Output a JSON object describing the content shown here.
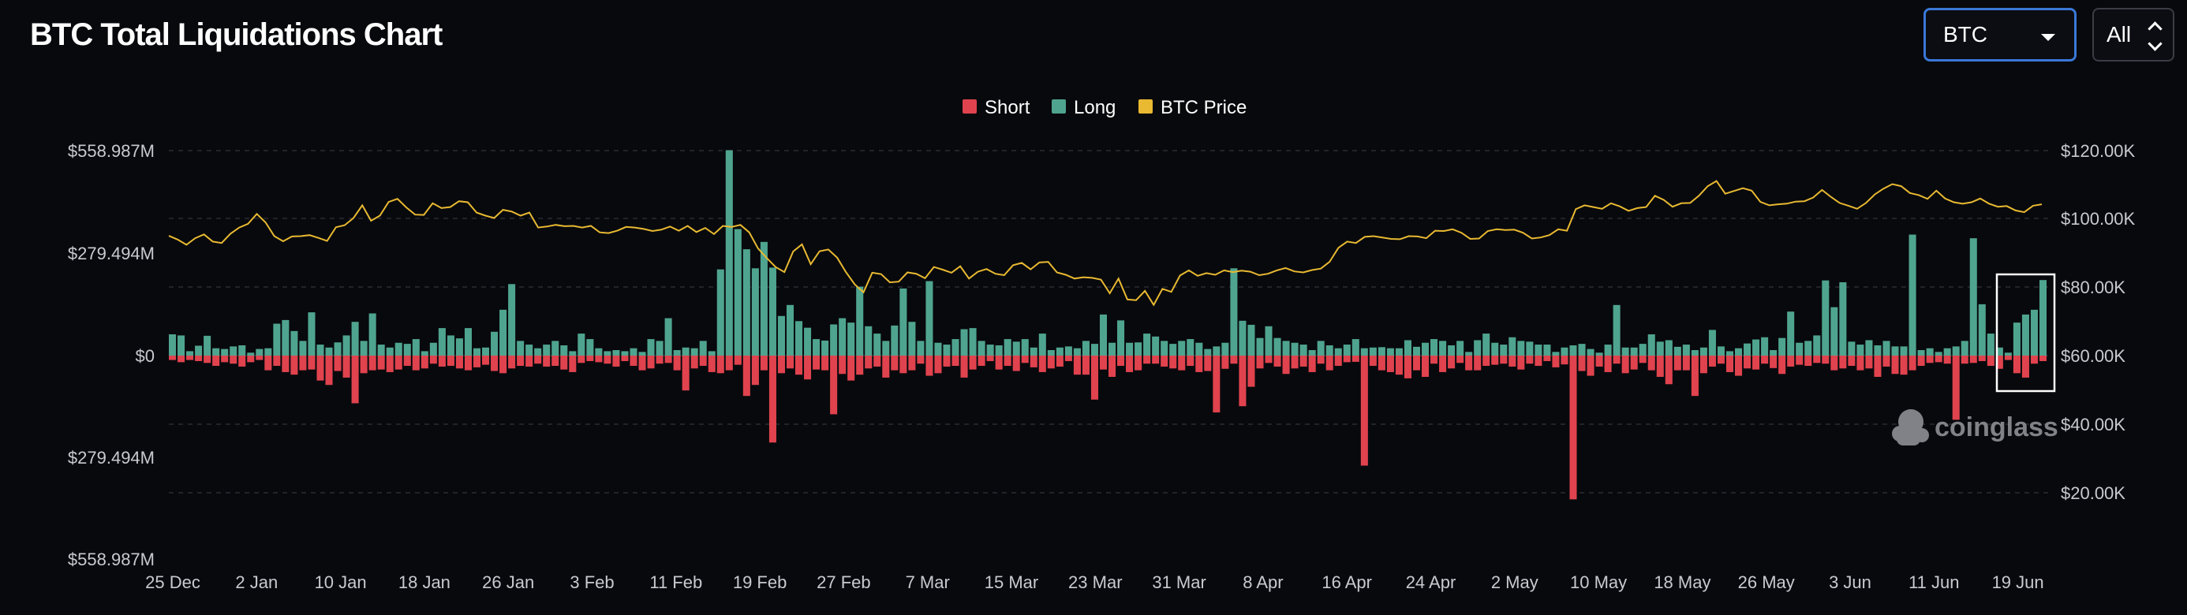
{
  "header": {
    "title": "BTC Total Liquidations Chart",
    "coin_select": {
      "value": "BTC"
    },
    "range_select": {
      "value": "All"
    }
  },
  "watermark": "coinglass",
  "colors": {
    "background": "#08090d",
    "short": "#e0434e",
    "long": "#4fa48f",
    "price": "#e8b931",
    "grid": "#2a2c33",
    "highlight_box": "#ffffff"
  },
  "chart_data": {
    "type": "bar",
    "legend": [
      "Short",
      "Long",
      "BTC Price"
    ],
    "legend_position": "top-center",
    "x_ticks": [
      "25 Dec",
      "2 Jan",
      "10 Jan",
      "18 Jan",
      "26 Jan",
      "3 Feb",
      "11 Feb",
      "19 Feb",
      "27 Feb",
      "7 Mar",
      "15 Mar",
      "23 Mar",
      "31 Mar",
      "8 Apr",
      "16 Apr",
      "24 Apr",
      "2 May",
      "10 May",
      "18 May",
      "26 May",
      "3 Jun",
      "11 Jun",
      "19 Jun"
    ],
    "left_axis": {
      "ticks": [
        "$558.987M",
        "$279.494M",
        "$0",
        "$279.494M",
        "$558.987M"
      ],
      "range": [
        -558.987,
        558.987
      ],
      "unit": "M USD"
    },
    "right_axis": {
      "ticks": [
        "$120.00K",
        "$100.00K",
        "$80.00K",
        "$60.00K",
        "$40.00K",
        "$20.00K"
      ],
      "range": [
        20000,
        120000
      ]
    },
    "grid": true,
    "long_values": [
      58,
      55,
      12,
      27,
      54,
      20,
      18,
      25,
      28,
      8,
      18,
      20,
      87,
      97,
      67,
      40,
      118,
      30,
      22,
      36,
      55,
      92,
      40,
      115,
      30,
      22,
      35,
      32,
      45,
      12,
      35,
      75,
      55,
      47,
      75,
      20,
      22,
      65,
      125,
      195,
      40,
      30,
      20,
      30,
      40,
      28,
      12,
      60,
      45,
      20,
      12,
      15,
      12,
      20,
      10,
      45,
      40,
      102,
      15,
      22,
      20,
      40,
      12,
      235,
      560,
      345,
      290,
      238,
      310,
      240,
      108,
      138,
      94,
      76,
      45,
      41,
      85,
      102,
      90,
      188,
      80,
      60,
      40,
      82,
      183,
      92,
      40,
      203,
      35,
      30,
      45,
      72,
      75,
      40,
      30,
      28,
      45,
      38,
      45,
      22,
      60,
      15,
      22,
      25,
      20,
      40,
      32,
      112,
      35,
      96,
      35,
      36,
      60,
      52,
      40,
      32,
      40,
      45,
      35,
      18,
      25,
      35,
      238,
      95,
      84,
      48,
      80,
      48,
      40,
      35,
      30,
      15,
      40,
      28,
      20,
      30,
      45,
      20,
      22,
      23,
      20,
      20,
      42,
      24,
      35,
      45,
      40,
      28,
      40,
      10,
      42,
      60,
      35,
      30,
      50,
      40,
      38,
      30,
      30,
      10,
      22,
      28,
      32,
      18,
      8,
      30,
      138,
      22,
      22,
      32,
      58,
      38,
      42,
      24,
      30,
      15,
      22,
      70,
      25,
      12,
      20,
      33,
      44,
      50,
      15,
      48,
      120,
      35,
      40,
      55,
      205,
      132,
      200,
      38,
      30,
      42,
      28,
      40,
      25,
      25,
      330,
      15,
      20,
      10,
      20,
      25,
      40,
      320,
      140,
      60,
      22,
      8,
      90,
      112,
      125,
      206
    ],
    "short_values": [
      12,
      18,
      12,
      15,
      20,
      28,
      18,
      22,
      30,
      18,
      12,
      40,
      28,
      45,
      52,
      40,
      38,
      68,
      80,
      42,
      60,
      130,
      48,
      40,
      38,
      45,
      38,
      28,
      40,
      35,
      22,
      30,
      28,
      35,
      40,
      32,
      25,
      42,
      48,
      35,
      28,
      30,
      22,
      30,
      28,
      38,
      45,
      20,
      15,
      18,
      22,
      30,
      15,
      28,
      40,
      35,
      22,
      20,
      40,
      95,
      35,
      28,
      45,
      48,
      40,
      25,
      110,
      80,
      40,
      237,
      48,
      35,
      52,
      65,
      38,
      40,
      160,
      50,
      68,
      52,
      35,
      30,
      60,
      40,
      48,
      40,
      22,
      55,
      48,
      30,
      28,
      60,
      38,
      28,
      15,
      38,
      28,
      42,
      20,
      32,
      45,
      35,
      30,
      15,
      52,
      52,
      120,
      38,
      58,
      28,
      45,
      40,
      22,
      22,
      30,
      35,
      40,
      28,
      45,
      42,
      155,
      36,
      22,
      138,
      85,
      35,
      20,
      30,
      50,
      35,
      30,
      45,
      22,
      40,
      28,
      18,
      17,
      300,
      28,
      40,
      45,
      52,
      62,
      40,
      58,
      22,
      45,
      35,
      20,
      40,
      40,
      28,
      25,
      22,
      30,
      38,
      22,
      28,
      15,
      32,
      24,
      392,
      42,
      55,
      30,
      45,
      22,
      48,
      38,
      20,
      40,
      58,
      78,
      40,
      40,
      110,
      48,
      30,
      22,
      45,
      55,
      35,
      38,
      22,
      34,
      50,
      30,
      25,
      28,
      20,
      22,
      40,
      35,
      28,
      40,
      35,
      58,
      30,
      50,
      52,
      40,
      28,
      20,
      18,
      22,
      175,
      22,
      20,
      15,
      28,
      36,
      12,
      48,
      60,
      22,
      15,
      38,
      38,
      22,
      48
    ],
    "price_values": [
      95100,
      94000,
      92500,
      94400,
      95500,
      93400,
      93000,
      95700,
      97500,
      98600,
      101500,
      99000,
      95000,
      93500,
      94900,
      95000,
      95300,
      94500,
      93600,
      97600,
      98200,
      100300,
      104000,
      99500,
      101000,
      105000,
      105900,
      103400,
      101300,
      101200,
      104600,
      103200,
      103500,
      105200,
      104900,
      101900,
      101000,
      100300,
      102700,
      102200,
      101000,
      101900,
      97500,
      97800,
      98300,
      97900,
      98000,
      97500,
      98000,
      96100,
      95900,
      96600,
      97700,
      97500,
      97100,
      96500,
      96900,
      97800,
      96600,
      98000,
      96200,
      97400,
      95600,
      98000,
      97700,
      98300,
      96100,
      91400,
      88600,
      86000,
      84500,
      90500,
      92600,
      86800,
      90600,
      91100,
      88700,
      84500,
      80900,
      78600,
      84300,
      83900,
      81500,
      81700,
      84400,
      84000,
      82700,
      86000,
      85200,
      84300,
      86200,
      82600,
      84600,
      85400,
      84000,
      83600,
      86500,
      87200,
      85300,
      87300,
      87500,
      84400,
      83700,
      82600,
      83000,
      82800,
      82300,
      78300,
      82600,
      76500,
      76300,
      79000,
      74900,
      79600,
      78700,
      83500,
      85000,
      83400,
      84200,
      83700,
      85000,
      84500,
      84900,
      84600,
      83600,
      84000,
      85000,
      85700,
      84700,
      84400,
      85100,
      85500,
      87500,
      91600,
      93400,
      93000,
      94800,
      95000,
      94600,
      94200,
      94100,
      95000,
      94900,
      94400,
      96600,
      96500,
      97000,
      96000,
      94200,
      94300,
      96500,
      97000,
      96800,
      96900,
      96000,
      94300,
      94600,
      95300,
      97000,
      96600,
      102900,
      104000,
      103500,
      103000,
      104600,
      103700,
      102400,
      103200,
      103500,
      106800,
      105600,
      103600,
      104600,
      104700,
      106800,
      109600,
      111100,
      107400,
      108200,
      109000,
      108300,
      105000,
      104000,
      104300,
      104500,
      105100,
      105200,
      106300,
      108500,
      106500,
      104700,
      103900,
      103000,
      104700,
      107200,
      108900,
      110200,
      109600,
      107600,
      107000,
      105900,
      108300,
      106000,
      104900,
      104500,
      104900,
      106000,
      104500,
      103600,
      103800,
      102500,
      102000,
      103900,
      104300
    ]
  }
}
